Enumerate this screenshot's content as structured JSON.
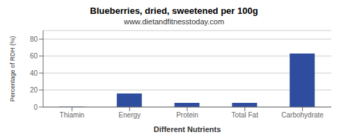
{
  "chart_data": {
    "type": "bar",
    "title": "Blueberries, dried, sweetened per 100g",
    "subtitle": "www.dietandfitnesstoday.com",
    "xlabel": "Different Nutrients",
    "ylabel": "Percentage of RDH (%)",
    "categories": [
      "Thiamin",
      "Energy",
      "Protein",
      "Total Fat",
      "Carbohydrate"
    ],
    "values": [
      0.5,
      16,
      5,
      5,
      63
    ],
    "color": "#2e4d9e",
    "ylim": [
      0,
      90
    ],
    "yticks": [
      0,
      20,
      40,
      60,
      80
    ],
    "grid": true
  }
}
